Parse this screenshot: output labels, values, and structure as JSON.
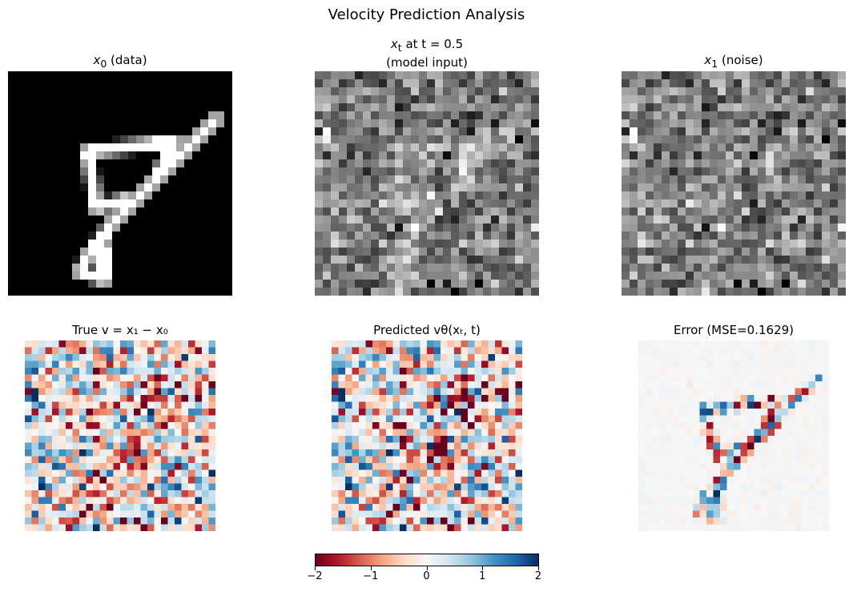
{
  "figure_title": "Velocity Prediction Analysis",
  "chart_data": {
    "type": "heatmap",
    "title": "Velocity Prediction Analysis",
    "grid": false,
    "panels": [
      {
        "title_main": "x",
        "title_sub": "0",
        "title_rest": " (data)",
        "colormap": "gray"
      },
      {
        "title_main": "x",
        "title_sub": "t",
        "title_rest": " at t = 0.5",
        "title_line2": "(model input)",
        "colormap": "gray"
      },
      {
        "title_main": "x",
        "title_sub": "1",
        "title_rest": " (noise)",
        "colormap": "gray"
      },
      {
        "title": "True v = x₁ − x₀",
        "colormap": "RdBu",
        "vlim": [
          -2,
          2
        ]
      },
      {
        "title": "Predicted vθ(xₜ, t)",
        "colormap": "RdBu",
        "vlim": [
          -2,
          2
        ]
      },
      {
        "title": "Error (MSE=0.1629)",
        "colormap": "RdBu",
        "vlim": [
          -2,
          2
        ]
      }
    ],
    "colorbar": {
      "colormap": "RdBu",
      "range": [
        -2,
        2
      ],
      "tick_labels": [
        "−2",
        "−1",
        "0",
        "1",
        "2"
      ],
      "orientation": "horizontal"
    }
  }
}
